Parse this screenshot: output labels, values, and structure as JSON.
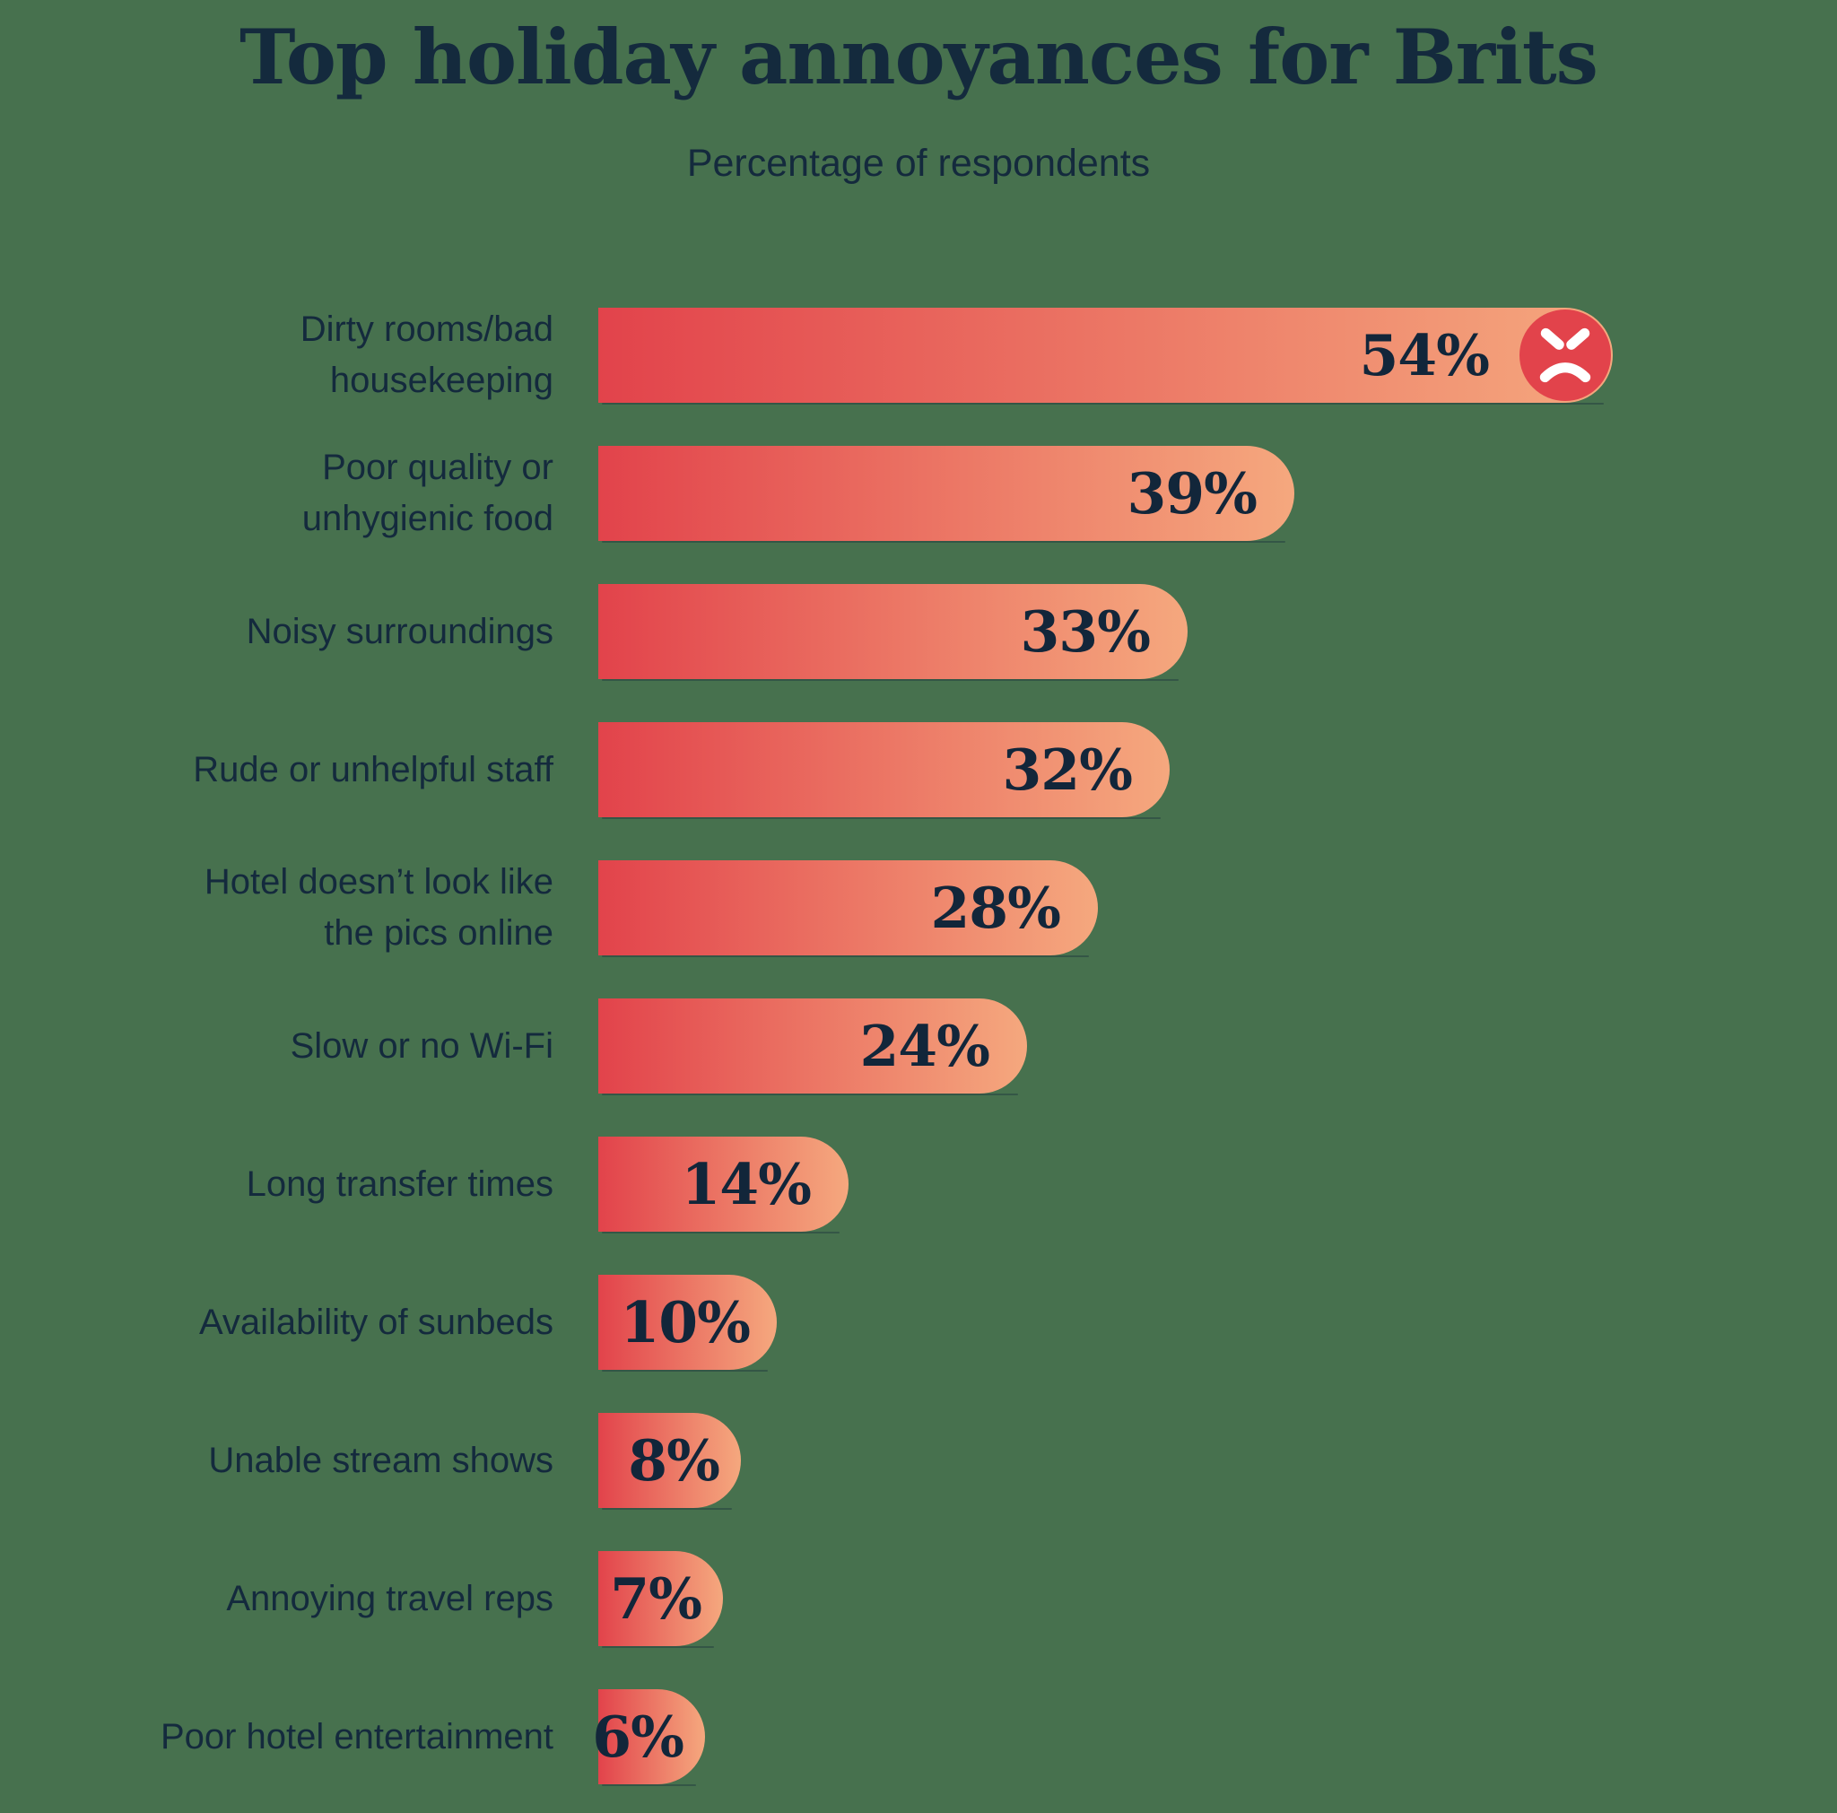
{
  "title": "Top holiday annoyances for Brits",
  "subtitle": "Percentage of respondents",
  "colors": {
    "background": "#47714E",
    "title_text": "#142A3D",
    "label_text": "#142A3D",
    "value_text": "#12263A",
    "bar_gradient_start": "#E2434B",
    "bar_gradient_end": "#F5A87E",
    "angry_face_bg": "#E2434B",
    "angry_face_features": "#FFFFFF"
  },
  "icons": {
    "angry_face": "angry-face-icon"
  },
  "chart_data": {
    "type": "bar",
    "orientation": "horizontal",
    "title": "Top holiday annoyances for Brits",
    "subtitle": "Percentage of respondents",
    "unit": "%",
    "xlim": [
      0,
      54
    ],
    "grid": false,
    "legend": false,
    "categories": [
      "Dirty rooms/bad housekeeping",
      "Poor quality or unhygienic food",
      "Noisy surroundings",
      "Rude or unhelpful staff",
      "Hotel doesn’t look like the pics online",
      "Slow or no Wi-Fi",
      "Long transfer times",
      "Availability of sunbeds",
      "Unable stream shows",
      "Annoying travel reps",
      "Poor hotel entertainment"
    ],
    "values": [
      54,
      39,
      33,
      32,
      28,
      24,
      14,
      10,
      8,
      7,
      6
    ],
    "value_labels": [
      "54%",
      "39%",
      "33%",
      "32%",
      "28%",
      "24%",
      "14%",
      "10%",
      "8%",
      "7%",
      "6%"
    ],
    "bars": [
      {
        "label_lines": [
          "Dirty rooms/bad",
          "housekeeping"
        ],
        "value": 54,
        "display": "54%",
        "icon": "angry-face"
      },
      {
        "label_lines": [
          "Poor quality or",
          "unhygienic food"
        ],
        "value": 39,
        "display": "39%"
      },
      {
        "label_lines": [
          "Noisy surroundings"
        ],
        "value": 33,
        "display": "33%"
      },
      {
        "label_lines": [
          "Rude or unhelpful staff"
        ],
        "value": 32,
        "display": "32%"
      },
      {
        "label_lines": [
          "Hotel doesn’t look like",
          "the pics online"
        ],
        "value": 28,
        "display": "28%"
      },
      {
        "label_lines": [
          "Slow or no Wi-Fi"
        ],
        "value": 24,
        "display": "24%"
      },
      {
        "label_lines": [
          "Long transfer times"
        ],
        "value": 14,
        "display": "14%"
      },
      {
        "label_lines": [
          "Availability of sunbeds"
        ],
        "value": 10,
        "display": "10%"
      },
      {
        "label_lines": [
          "Unable stream shows"
        ],
        "value": 8,
        "display": "8%"
      },
      {
        "label_lines": [
          "Annoying travel reps"
        ],
        "value": 7,
        "display": "7%"
      },
      {
        "label_lines": [
          "Poor hotel entertainment"
        ],
        "value": 6,
        "display": "6%"
      }
    ]
  }
}
